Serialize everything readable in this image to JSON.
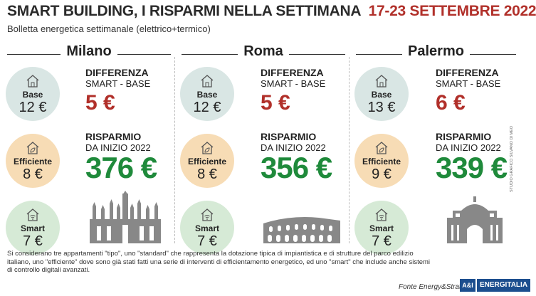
{
  "title": {
    "main": "SMART BUILDING, I RISPARMI NELLA SETTIMANA",
    "date": "17-23 SETTEMBRE 2022"
  },
  "subtitle": "Bolletta energetica settimanale (elettrico+termico)",
  "labels": {
    "base": "Base",
    "efficient": "Efficiente",
    "smart": "Smart",
    "diff_line1": "DIFFERENZA",
    "diff_line2": "SMART - BASE",
    "save_line1": "RISPARMIO",
    "save_line2": "DA INIZIO 2022"
  },
  "cities": [
    {
      "name": "Milano",
      "base": "12 €",
      "efficient": "8 €",
      "smart": "7 €",
      "difference": "5 €",
      "savings": "376 €"
    },
    {
      "name": "Roma",
      "base": "12 €",
      "efficient": "8 €",
      "smart": "7 €",
      "difference": "5 €",
      "savings": "356 €"
    },
    {
      "name": "Palermo",
      "base": "13 €",
      "efficient": "9 €",
      "smart": "7 €",
      "difference": "6 €",
      "savings": "339 €"
    }
  ],
  "note": "Si considerano tre appartamenti \"tipo\", uno \"standard\" che rappresenta la dotazione tipica di impiantistica e di strutture del parco edilizio italiano, uno \"efficiente\" dove sono già stati fatti una serie di interventi di efficientamento energetico, ed uno \"smart\" che include anche sistemi di controllo digitali avanzati.",
  "source": "Fonte Energy&Strategy",
  "logo": {
    "mark": "A&I",
    "text": "ENERGITALIA"
  },
  "credit": "STUDIO GRAFICO SILVANO DI MEO",
  "colors": {
    "accent_red": "#b1302a",
    "savings_green": "#1f8a3b",
    "base_circle": "#d9e6e4",
    "efficient_circle": "#f7dcb5",
    "smart_circle": "#d6ead6"
  }
}
